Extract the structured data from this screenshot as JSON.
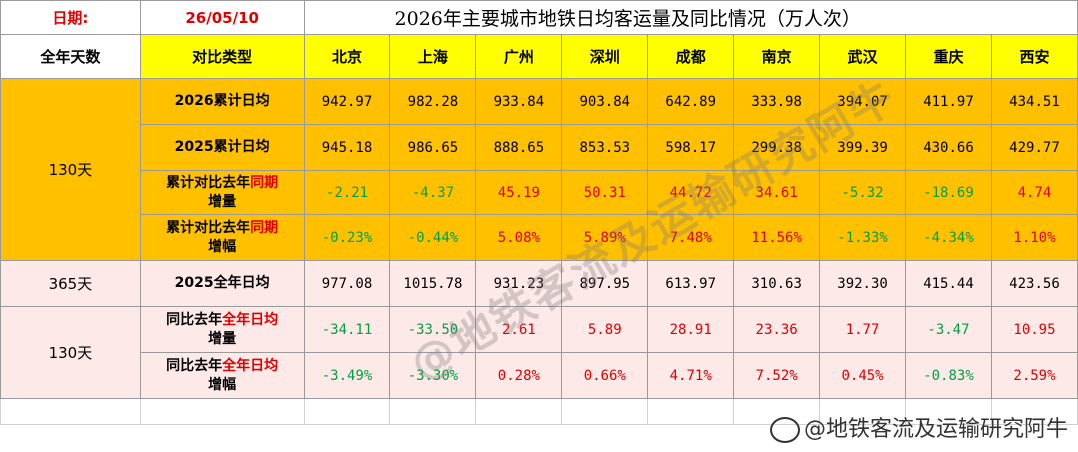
{
  "date_label": "日期:",
  "date_value": "26/05/10",
  "title": "2026年主要城市地铁日均客运量及同比情况（万人次）",
  "header": {
    "days": "全年天数",
    "type": "对比类型",
    "cities": [
      "北京",
      "上海",
      "广州",
      "深圳",
      "成都",
      "南京",
      "武汉",
      "重庆",
      "西安"
    ]
  },
  "group1_days": "130天",
  "group2_days": "365天",
  "group3_days": "130天",
  "rows": [
    {
      "label": "2026累计日均",
      "values": [
        "942.97",
        "982.28",
        "933.84",
        "903.84",
        "642.89",
        "333.98",
        "394.07",
        "411.97",
        "434.51"
      ]
    },
    {
      "label": "2025累计日均",
      "values": [
        "945.18",
        "986.65",
        "888.65",
        "853.53",
        "598.17",
        "299.38",
        "399.39",
        "430.66",
        "429.77"
      ]
    },
    {
      "label_a": "累计对比去年",
      "label_b": "同期",
      "label_c": "增量",
      "values": [
        "-2.21",
        "-4.37",
        "45.19",
        "50.31",
        "44.72",
        "34.61",
        "-5.32",
        "-18.69",
        "4.74"
      ]
    },
    {
      "label_a": "累计对比去年",
      "label_b": "同期",
      "label_c": "增幅",
      "values": [
        "-0.23%",
        "-0.44%",
        "5.08%",
        "5.89%",
        "7.48%",
        "11.56%",
        "-1.33%",
        "-4.34%",
        "1.10%"
      ]
    },
    {
      "label": "2025全年日均",
      "values": [
        "977.08",
        "1015.78",
        "931.23",
        "897.95",
        "613.97",
        "310.63",
        "392.30",
        "415.44",
        "423.56"
      ]
    },
    {
      "label_a": "同比去年",
      "label_b": "全年日均",
      "label_c": "增量",
      "values": [
        "-34.11",
        "-33.50",
        "2.61",
        "5.89",
        "28.91",
        "23.36",
        "1.77",
        "-3.47",
        "10.95"
      ]
    },
    {
      "label_a": "同比去年",
      "label_b": "全年日均",
      "label_c": "增幅",
      "values": [
        "-3.49%",
        "-3.30%",
        "0.28%",
        "0.66%",
        "4.71%",
        "7.52%",
        "0.45%",
        "-0.83%",
        "2.59%"
      ]
    }
  ],
  "colors": {
    "positive": "#e00000",
    "negative": "#00a040",
    "header_bg": "#ffff00",
    "orange_bg": "#ffc000",
    "pink_bg": "#fde9e7"
  },
  "watermark": "@地铁客流及运输研究阿牛",
  "credit": "@地铁客流及运输研究阿牛"
}
